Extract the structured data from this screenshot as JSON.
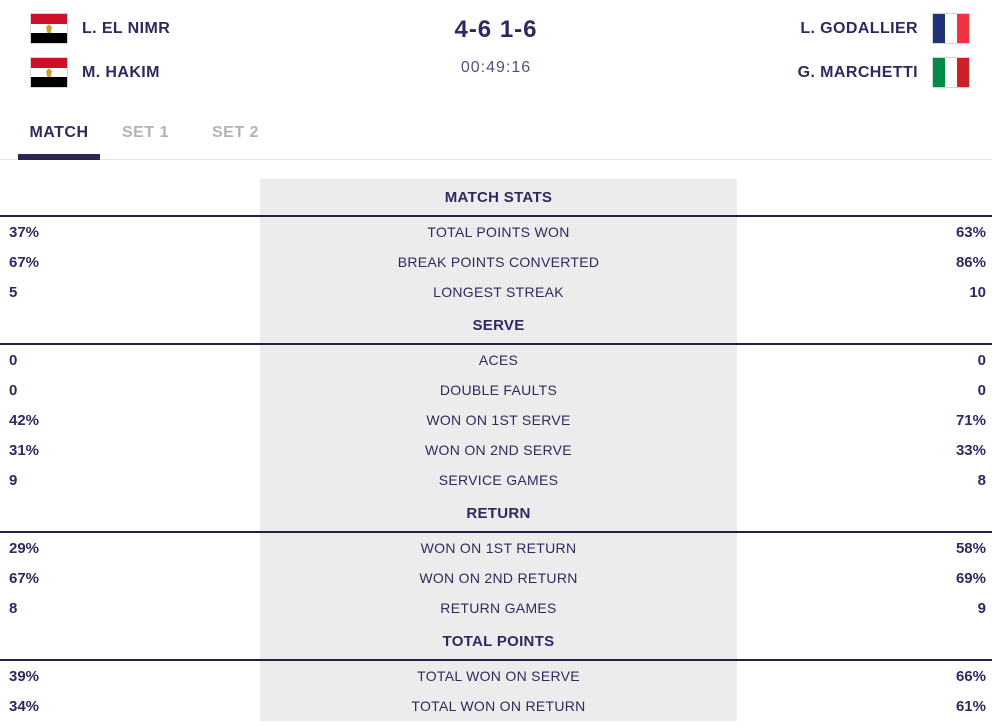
{
  "header": {
    "team1": {
      "players": [
        {
          "name": "L. EL NIMR",
          "flag": "egypt"
        },
        {
          "name": "M. HAKIM",
          "flag": "egypt"
        }
      ]
    },
    "score": "4-6 1-6",
    "time": "00:49:16",
    "team2": {
      "players": [
        {
          "name": "L. GODALLIER",
          "flag": "france"
        },
        {
          "name": "G. MARCHETTI",
          "flag": "italy"
        }
      ]
    }
  },
  "tabs": [
    {
      "label": "MATCH",
      "active": true
    },
    {
      "label": "SET 1",
      "active": false
    },
    {
      "label": "SET 2",
      "active": false
    }
  ],
  "stats": {
    "sections": [
      {
        "title": "MATCH STATS",
        "rows": [
          {
            "left": "37%",
            "label": "TOTAL POINTS WON",
            "right": "63%"
          },
          {
            "left": "67%",
            "label": "BREAK POINTS CONVERTED",
            "right": "86%"
          },
          {
            "left": "5",
            "label": "LONGEST STREAK",
            "right": "10"
          }
        ]
      },
      {
        "title": "SERVE",
        "rows": [
          {
            "left": "0",
            "label": "ACES",
            "right": "0"
          },
          {
            "left": "0",
            "label": "DOUBLE FAULTS",
            "right": "0"
          },
          {
            "left": "42%",
            "label": "WON ON 1ST SERVE",
            "right": "71%"
          },
          {
            "left": "31%",
            "label": "WON ON 2ND SERVE",
            "right": "33%"
          },
          {
            "left": "9",
            "label": "SERVICE GAMES",
            "right": "8"
          }
        ]
      },
      {
        "title": "RETURN",
        "rows": [
          {
            "left": "29%",
            "label": "WON ON 1ST RETURN",
            "right": "58%"
          },
          {
            "left": "67%",
            "label": "WON ON 2ND RETURN",
            "right": "69%"
          },
          {
            "left": "8",
            "label": "RETURN GAMES",
            "right": "9"
          }
        ]
      },
      {
        "title": "TOTAL POINTS",
        "rows": [
          {
            "left": "39%",
            "label": "TOTAL WON ON SERVE",
            "right": "66%"
          },
          {
            "left": "34%",
            "label": "TOTAL WON ON RETURN",
            "right": "61%"
          }
        ]
      }
    ]
  },
  "colors": {
    "accent_navy": "#2e2a5e",
    "section_line": "#232046",
    "panel_gray": "#ececec",
    "tab_inactive": "#b3b3b3",
    "tab_divider": "#e4e4e4",
    "time_text": "#53507c",
    "flag_egypt": [
      "#ce1126",
      "#ffffff",
      "#000000"
    ],
    "flag_egypt_eagle": "#c8a429",
    "flag_france": [
      "#20337a",
      "#ffffff",
      "#ef3340"
    ],
    "flag_italy": [
      "#008c45",
      "#ffffff",
      "#cd212a"
    ]
  }
}
